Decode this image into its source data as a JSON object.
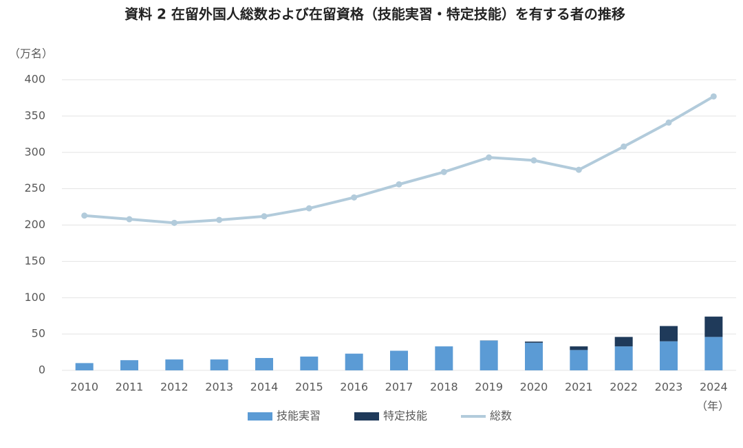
{
  "chart_data": {
    "type": "bar",
    "stacked": true,
    "title": "資料 2  在留外国人総数および在留資格（技能実習・特定技能）を有する者の推移",
    "y_label": "（万名）",
    "x_label": "（年）",
    "categories": [
      "2010",
      "2011",
      "2012",
      "2013",
      "2014",
      "2015",
      "2016",
      "2017",
      "2018",
      "2019",
      "2020",
      "2021",
      "2022",
      "2023",
      "2024"
    ],
    "series": [
      {
        "name": "技能実習",
        "color": "#5b9bd5",
        "values": [
          10,
          14,
          15,
          15,
          17,
          19,
          23,
          27,
          33,
          41,
          38,
          28,
          33,
          40,
          46
        ]
      },
      {
        "name": "特定技能",
        "color": "#1f3a5a",
        "values": [
          0,
          0,
          0,
          0,
          0,
          0,
          0,
          0,
          0,
          0.2,
          1.6,
          5,
          13,
          21,
          28
        ]
      },
      {
        "name": "総数",
        "color": "#b2cbdb",
        "type": "line",
        "values": [
          213,
          208,
          203,
          207,
          212,
          223,
          238,
          256,
          273,
          293,
          289,
          276,
          308,
          341,
          377
        ]
      }
    ],
    "ylim": [
      0,
      400
    ],
    "yticks": [
      0,
      50,
      100,
      150,
      200,
      250,
      300,
      350,
      400
    ],
    "grid": true
  }
}
